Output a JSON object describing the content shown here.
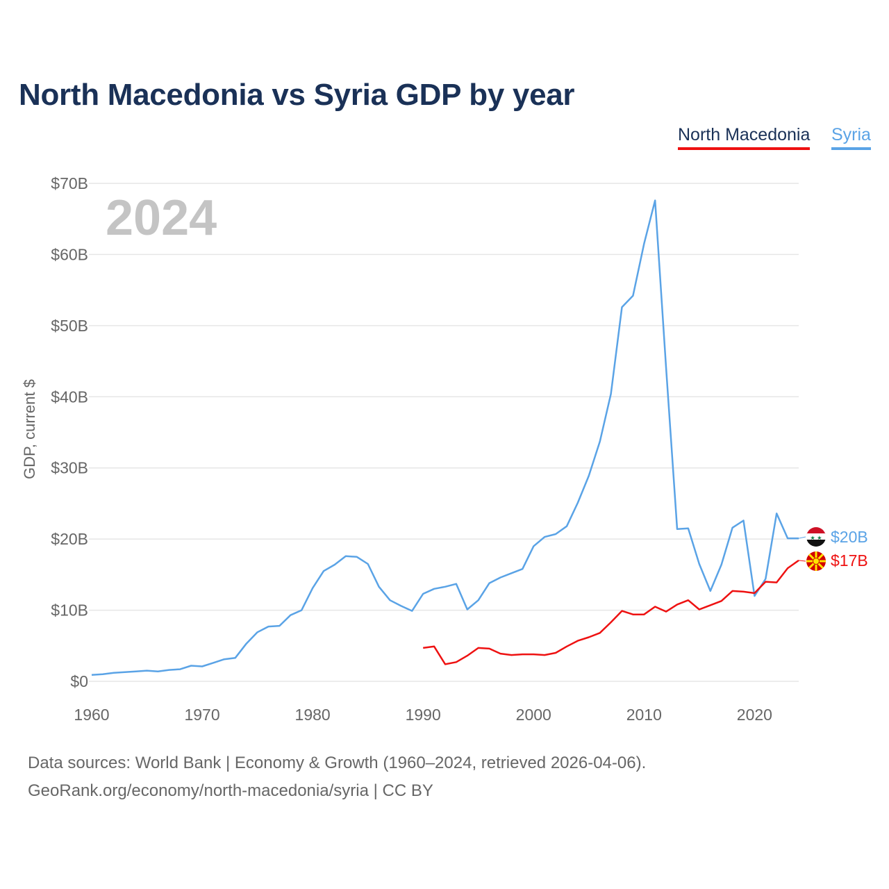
{
  "title": "North Macedonia vs Syria GDP by year",
  "legend": {
    "nm": "North Macedonia",
    "sy": "Syria"
  },
  "year_label": "2024",
  "end_labels": {
    "nm": "$17B",
    "sy": "$20B"
  },
  "footer": {
    "source": "Data sources: World Bank | Economy & Growth (1960–2024, retrieved 2026-04-06).",
    "credit": "GeoRank.org/economy/north-macedonia/syria | CC BY"
  },
  "colors": {
    "nm": "#ee1111",
    "sy": "#5aa3e6",
    "title": "#1a3157",
    "grid": "#e6e6e6",
    "axis_text": "#666666",
    "year": "#c4c4c4"
  },
  "chart_data": {
    "type": "line",
    "title": "North Macedonia vs Syria GDP by year",
    "xlabel": "",
    "ylabel": "GDP, current $",
    "xlim": [
      1960,
      2024
    ],
    "ylim": [
      0,
      70
    ],
    "y_unit": "billion USD",
    "x_ticks": [
      1960,
      1970,
      1980,
      1990,
      2000,
      2010,
      2020
    ],
    "y_ticks": [
      0,
      10,
      20,
      30,
      40,
      50,
      60,
      70
    ],
    "y_tick_labels": [
      "$0",
      "$10B",
      "$20B",
      "$30B",
      "$40B",
      "$50B",
      "$60B",
      "$70B"
    ],
    "grid": true,
    "legend_position": "top-right",
    "series": [
      {
        "name": "Syria",
        "x": [
          1960,
          1961,
          1962,
          1963,
          1964,
          1965,
          1966,
          1967,
          1968,
          1969,
          1970,
          1971,
          1972,
          1973,
          1974,
          1975,
          1976,
          1977,
          1978,
          1979,
          1980,
          1981,
          1982,
          1983,
          1984,
          1985,
          1986,
          1987,
          1988,
          1989,
          1990,
          1991,
          1992,
          1993,
          1994,
          1995,
          1996,
          1997,
          1998,
          1999,
          2000,
          2001,
          2002,
          2003,
          2004,
          2005,
          2006,
          2007,
          2008,
          2009,
          2010,
          2011,
          2012,
          2013,
          2014,
          2015,
          2016,
          2017,
          2018,
          2019,
          2020,
          2021,
          2022,
          2023,
          2024
        ],
        "values": [
          0.9,
          1.0,
          1.2,
          1.3,
          1.4,
          1.5,
          1.4,
          1.6,
          1.7,
          2.2,
          2.1,
          2.6,
          3.1,
          3.3,
          5.3,
          6.9,
          7.7,
          7.8,
          9.3,
          10.0,
          13.1,
          15.5,
          16.4,
          17.6,
          17.5,
          16.5,
          13.3,
          11.4,
          10.6,
          9.9,
          12.3,
          13.0,
          13.3,
          13.7,
          10.1,
          11.4,
          13.8,
          14.6,
          15.2,
          15.8,
          19.0,
          20.3,
          20.7,
          21.8,
          25.1,
          28.9,
          33.7,
          40.4,
          52.6,
          54.2,
          61.5,
          67.6,
          44.0,
          21.4,
          21.5,
          16.5,
          12.7,
          16.4,
          21.6,
          22.6,
          12.0,
          14.4,
          23.6,
          20.1,
          20.1
        ]
      },
      {
        "name": "North Macedonia",
        "x": [
          1990,
          1991,
          1992,
          1993,
          1994,
          1995,
          1996,
          1997,
          1998,
          1999,
          2000,
          2001,
          2002,
          2003,
          2004,
          2005,
          2006,
          2007,
          2008,
          2009,
          2010,
          2011,
          2012,
          2013,
          2014,
          2015,
          2016,
          2017,
          2018,
          2019,
          2020,
          2021,
          2022,
          2023,
          2024
        ],
        "values": [
          4.7,
          4.9,
          2.4,
          2.7,
          3.6,
          4.7,
          4.6,
          3.9,
          3.7,
          3.8,
          3.8,
          3.7,
          4.0,
          4.9,
          5.7,
          6.2,
          6.8,
          8.3,
          9.9,
          9.4,
          9.4,
          10.5,
          9.8,
          10.8,
          11.4,
          10.1,
          10.7,
          11.3,
          12.7,
          12.6,
          12.4,
          14.0,
          13.9,
          15.9,
          17.0
        ]
      }
    ]
  }
}
